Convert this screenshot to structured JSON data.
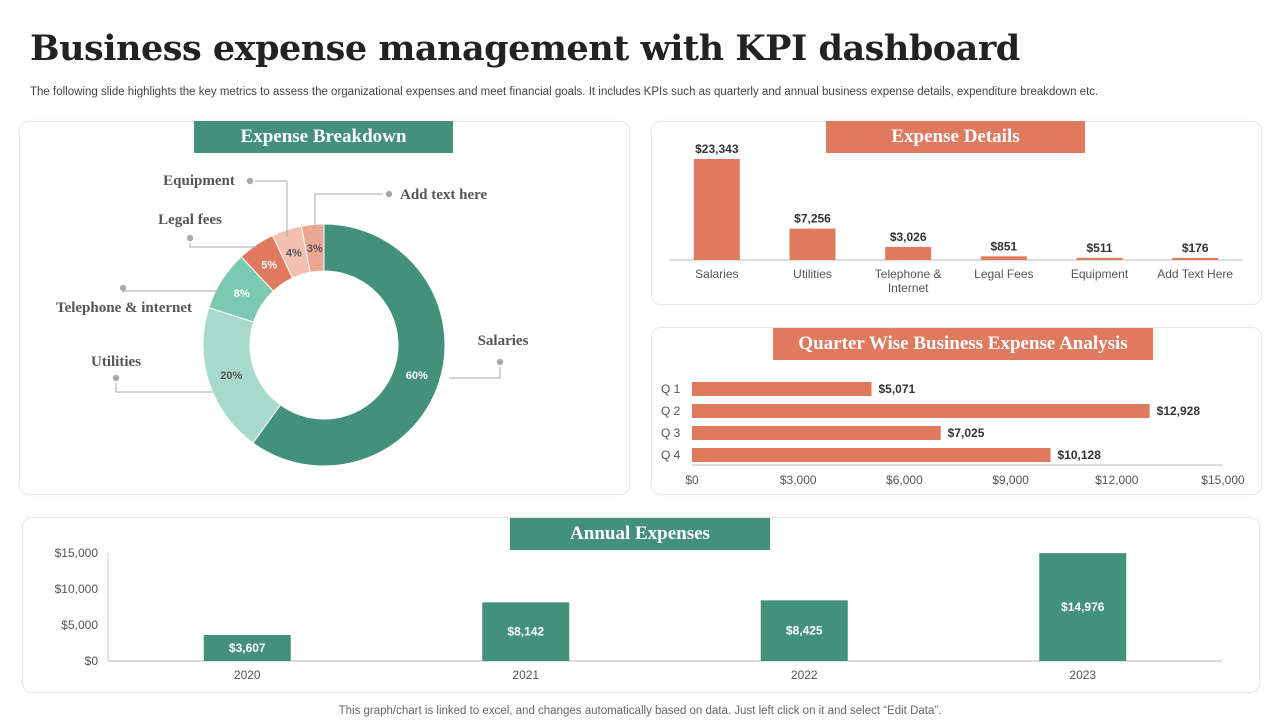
{
  "header": {
    "title": "Business expense management with KPI dashboard",
    "subtitle": "The following slide highlights the key metrics to assess the organizational expenses and meet financial goals. It includes KPIs such as quarterly and annual business expense details, expenditure breakdown etc."
  },
  "panels": {
    "breakdown_title": "Expense Breakdown",
    "details_title": "Expense Details",
    "quarter_title": "Quarter Wise Business Expense Analysis",
    "annual_title": "Annual Expenses"
  },
  "footnote": "This graph/chart is linked to excel, and changes automatically based on data. Just left click on it and select “Edit Data”.",
  "colors": {
    "green": "#43917b",
    "orange": "#e07a5f",
    "donut": [
      "#43917b",
      "#a8dacb",
      "#7cc9b1",
      "#e07a5f",
      "#f3c0b0",
      "#eaa892"
    ]
  },
  "chart_data": [
    {
      "type": "pie",
      "title": "Expense Breakdown",
      "categories": [
        "Salaries",
        "Utilities",
        "Telephone & internet",
        "Legal fees",
        "Equipment",
        "Add text here"
      ],
      "values": [
        60,
        20,
        8,
        5,
        4,
        3
      ],
      "value_labels": [
        "60%",
        "20%",
        "8%",
        "5%",
        "4%",
        "3%"
      ]
    },
    {
      "type": "bar",
      "title": "Expense Details",
      "categories": [
        "Salaries",
        "Utilities",
        "Telephone & Internet",
        "Legal Fees",
        "Equipment",
        "Add Text Here"
      ],
      "values": [
        23343,
        7256,
        3026,
        851,
        511,
        176
      ],
      "value_labels": [
        "$23,343",
        "$7,256",
        "$3,026",
        "$851",
        "$511",
        "$176"
      ]
    },
    {
      "type": "bar",
      "orientation": "horizontal",
      "title": "Quarter Wise Business Expense Analysis",
      "categories": [
        "Q 1",
        "Q 2",
        "Q 3",
        "Q 4"
      ],
      "values": [
        5071,
        12928,
        7025,
        10128
      ],
      "value_labels": [
        "$5,071",
        "$12,928",
        "$7,025",
        "$10,128"
      ],
      "xlim": [
        0,
        15000
      ],
      "ticks": [
        0,
        3000,
        6000,
        9000,
        12000,
        15000
      ],
      "tick_labels": [
        "$0",
        "$3,000",
        "$6,000",
        "$9,000",
        "$12,000",
        "$15,000"
      ]
    },
    {
      "type": "bar",
      "title": "Annual Expenses",
      "categories": [
        "2020",
        "2021",
        "2022",
        "2023"
      ],
      "values": [
        3607,
        8142,
        8425,
        14976
      ],
      "value_labels": [
        "$3,607",
        "$8,142",
        "$8,425",
        "$14,976"
      ],
      "ylim": [
        0,
        15000
      ],
      "ticks": [
        0,
        5000,
        10000,
        15000
      ],
      "tick_labels": [
        "$0",
        "$5,000",
        "$10,000",
        "$15,000"
      ]
    }
  ]
}
